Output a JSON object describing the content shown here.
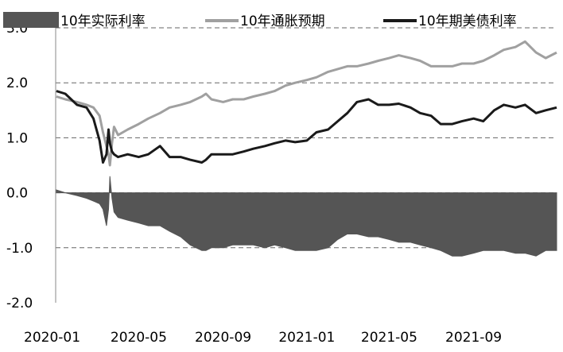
{
  "chart_data": {
    "type": "line",
    "title": "",
    "xlabel": "",
    "ylabel": "",
    "ylim": [
      -2.0,
      3.0
    ],
    "y_ticks": [
      "3.0",
      "2.0",
      "1.0",
      "0.0",
      "-1.0",
      "-2.0"
    ],
    "x_ticks": [
      "2020-01",
      "2020-05",
      "2020-09",
      "2021-01",
      "2021-05",
      "2021-09"
    ],
    "grid": "horizontal dashed",
    "legend_placement": "top",
    "series": [
      {
        "name": "10年实际利率",
        "style": "area",
        "color": "#555555",
        "x": [
          "2020-01-02",
          "2020-01-15",
          "2020-02-01",
          "2020-02-15",
          "2020-02-25",
          "2020-03-05",
          "2020-03-10",
          "2020-03-15",
          "2020-03-18",
          "2020-03-20",
          "2020-03-23",
          "2020-03-26",
          "2020-04-01",
          "2020-04-15",
          "2020-05-01",
          "2020-05-15",
          "2020-06-01",
          "2020-06-15",
          "2020-07-01",
          "2020-07-15",
          "2020-08-01",
          "2020-08-07",
          "2020-08-15",
          "2020-09-01",
          "2020-09-15",
          "2020-10-01",
          "2020-10-15",
          "2020-11-01",
          "2020-11-15",
          "2020-12-01",
          "2020-12-15",
          "2021-01-01",
          "2021-01-15",
          "2021-02-01",
          "2021-02-15",
          "2021-03-01",
          "2021-03-15",
          "2021-04-01",
          "2021-04-15",
          "2021-05-01",
          "2021-05-15",
          "2021-06-01",
          "2021-06-15",
          "2021-07-01",
          "2021-07-15",
          "2021-08-01",
          "2021-08-15",
          "2021-09-01",
          "2021-09-15",
          "2021-10-01",
          "2021-10-15",
          "2021-11-01",
          "2021-11-15",
          "2021-12-01",
          "2021-12-15",
          "2021-12-31"
        ],
        "values": [
          0.05,
          0.0,
          -0.05,
          -0.1,
          -0.15,
          -0.2,
          -0.3,
          -0.6,
          -0.3,
          0.3,
          -0.1,
          -0.35,
          -0.45,
          -0.5,
          -0.55,
          -0.6,
          -0.6,
          -0.7,
          -0.8,
          -0.95,
          -1.05,
          -1.05,
          -1.0,
          -1.0,
          -0.95,
          -0.95,
          -0.95,
          -1.0,
          -0.95,
          -1.0,
          -1.05,
          -1.05,
          -1.05,
          -1.0,
          -0.85,
          -0.75,
          -0.75,
          -0.8,
          -0.8,
          -0.85,
          -0.9,
          -0.9,
          -0.95,
          -1.0,
          -1.05,
          -1.15,
          -1.15,
          -1.1,
          -1.05,
          -1.05,
          -1.05,
          -1.1,
          -1.1,
          -1.15,
          -1.05,
          -1.05
        ]
      },
      {
        "name": "10年通胀预期",
        "style": "line",
        "color": "#a0a0a0",
        "x": [
          "2020-01-02",
          "2020-01-15",
          "2020-02-01",
          "2020-02-15",
          "2020-02-25",
          "2020-03-05",
          "2020-03-10",
          "2020-03-15",
          "2020-03-18",
          "2020-03-20",
          "2020-03-23",
          "2020-03-26",
          "2020-04-01",
          "2020-04-15",
          "2020-05-01",
          "2020-05-15",
          "2020-06-01",
          "2020-06-15",
          "2020-07-01",
          "2020-07-15",
          "2020-08-01",
          "2020-08-07",
          "2020-08-15",
          "2020-09-01",
          "2020-09-15",
          "2020-10-01",
          "2020-10-15",
          "2020-11-01",
          "2020-11-15",
          "2020-12-01",
          "2020-12-15",
          "2021-01-01",
          "2021-01-15",
          "2021-02-01",
          "2021-02-15",
          "2021-03-01",
          "2021-03-15",
          "2021-04-01",
          "2021-04-15",
          "2021-05-01",
          "2021-05-15",
          "2021-06-01",
          "2021-06-15",
          "2021-07-01",
          "2021-07-15",
          "2021-08-01",
          "2021-08-15",
          "2021-09-01",
          "2021-09-15",
          "2021-10-01",
          "2021-10-15",
          "2021-11-01",
          "2021-11-15",
          "2021-12-01",
          "2021-12-15",
          "2021-12-31"
        ],
        "values": [
          1.75,
          1.7,
          1.65,
          1.6,
          1.55,
          1.4,
          1.1,
          0.85,
          0.7,
          0.5,
          0.9,
          1.2,
          1.05,
          1.15,
          1.25,
          1.35,
          1.45,
          1.55,
          1.6,
          1.65,
          1.75,
          1.8,
          1.7,
          1.65,
          1.7,
          1.7,
          1.75,
          1.8,
          1.85,
          1.95,
          2.0,
          2.05,
          2.1,
          2.2,
          2.25,
          2.3,
          2.3,
          2.35,
          2.4,
          2.45,
          2.5,
          2.45,
          2.4,
          2.3,
          2.3,
          2.3,
          2.35,
          2.35,
          2.4,
          2.5,
          2.6,
          2.65,
          2.75,
          2.55,
          2.45,
          2.55
        ]
      },
      {
        "name": "10年期美债利率",
        "style": "line",
        "color": "#1a1a1a",
        "x": [
          "2020-01-02",
          "2020-01-15",
          "2020-02-01",
          "2020-02-15",
          "2020-02-25",
          "2020-03-05",
          "2020-03-10",
          "2020-03-15",
          "2020-03-18",
          "2020-03-20",
          "2020-03-23",
          "2020-03-26",
          "2020-04-01",
          "2020-04-15",
          "2020-05-01",
          "2020-05-15",
          "2020-06-01",
          "2020-06-15",
          "2020-07-01",
          "2020-07-15",
          "2020-08-01",
          "2020-08-07",
          "2020-08-15",
          "2020-09-01",
          "2020-09-15",
          "2020-10-01",
          "2020-10-15",
          "2020-11-01",
          "2020-11-15",
          "2020-12-01",
          "2020-12-15",
          "2021-01-01",
          "2021-01-15",
          "2021-02-01",
          "2021-02-15",
          "2021-03-01",
          "2021-03-15",
          "2021-04-01",
          "2021-04-15",
          "2021-05-01",
          "2021-05-15",
          "2021-06-01",
          "2021-06-15",
          "2021-07-01",
          "2021-07-15",
          "2021-08-01",
          "2021-08-15",
          "2021-09-01",
          "2021-09-15",
          "2021-10-01",
          "2021-10-15",
          "2021-11-01",
          "2021-11-15",
          "2021-12-01",
          "2021-12-15",
          "2021-12-31"
        ],
        "values": [
          1.85,
          1.8,
          1.6,
          1.55,
          1.35,
          0.95,
          0.55,
          0.7,
          1.15,
          0.9,
          0.75,
          0.7,
          0.65,
          0.7,
          0.65,
          0.7,
          0.85,
          0.65,
          0.65,
          0.6,
          0.55,
          0.6,
          0.7,
          0.7,
          0.7,
          0.75,
          0.8,
          0.85,
          0.9,
          0.95,
          0.92,
          0.95,
          1.1,
          1.15,
          1.3,
          1.45,
          1.65,
          1.7,
          1.6,
          1.6,
          1.62,
          1.55,
          1.45,
          1.4,
          1.25,
          1.25,
          1.3,
          1.35,
          1.3,
          1.5,
          1.6,
          1.55,
          1.6,
          1.45,
          1.5,
          1.55
        ]
      }
    ]
  }
}
